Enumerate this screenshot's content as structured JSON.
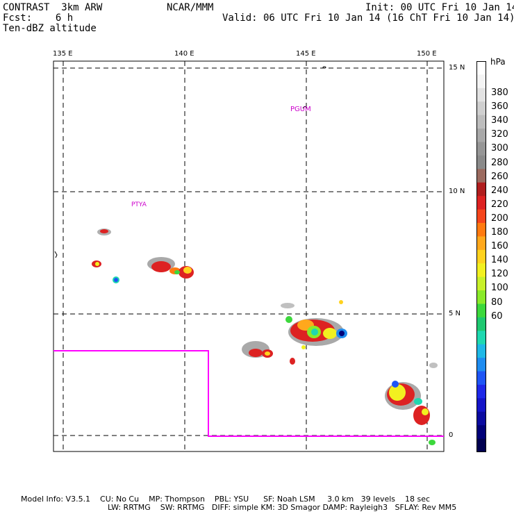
{
  "header": {
    "left_line1": "CONTRAST  3km ARW",
    "left_line2": "Fcst:    6 h",
    "left_line3": "Ten-dBZ altitude",
    "center": "NCAR/MMM",
    "right_line1": "Init: 00 UTC Fri 10 Jan 14",
    "right_line2": "Valid: 06 UTC Fri 10 Jan 14 (16 ChT Fri 10 Jan 14)"
  },
  "map": {
    "lon_labels": [
      "135 E",
      "140 E",
      "145 E",
      "150 E"
    ],
    "lat_labels": [
      "15 N",
      "10 N",
      "5 N",
      "0"
    ],
    "place_labels": [
      "PGUM",
      "PTYA"
    ],
    "colors": {
      "boundary": "#ff00ff",
      "grid": "#000000"
    }
  },
  "colorbar": {
    "unit": "hPa",
    "labels": [
      "380",
      "360",
      "340",
      "320",
      "300",
      "280",
      "260",
      "240",
      "220",
      "200",
      "180",
      "160",
      "140",
      "120",
      "100",
      "80",
      "60"
    ],
    "colors": [
      "#ffffff",
      "#f4f4f4",
      "#e2e2e2",
      "#cfcfcf",
      "#bdbdbd",
      "#a9a9a9",
      "#969696",
      "#8a8a8a",
      "#9b6a5f",
      "#b01e1e",
      "#dd2222",
      "#f5451c",
      "#ff7a10",
      "#ffa81c",
      "#ffd21e",
      "#f2f020",
      "#c8f02a",
      "#8aea2a",
      "#3cd83c",
      "#1ec870",
      "#1ed8b0",
      "#1eb8e6",
      "#1e8cf0",
      "#1e55f5",
      "#1e28e8",
      "#1414c8",
      "#0a0aa0",
      "#000078",
      "#000050"
    ]
  },
  "footer": {
    "line1": "Model Info: V3.5.1    CU: No Cu    MP: Thompson    PBL: YSU      SF: Noah LSM     3.0 km   39 levels    18 sec",
    "line2": "LW: RRTMG    SW: RRTMG   DIFF: simple KM: 3D Smagor DAMP: Rayleigh3   SFLAY: Rev MM5"
  }
}
